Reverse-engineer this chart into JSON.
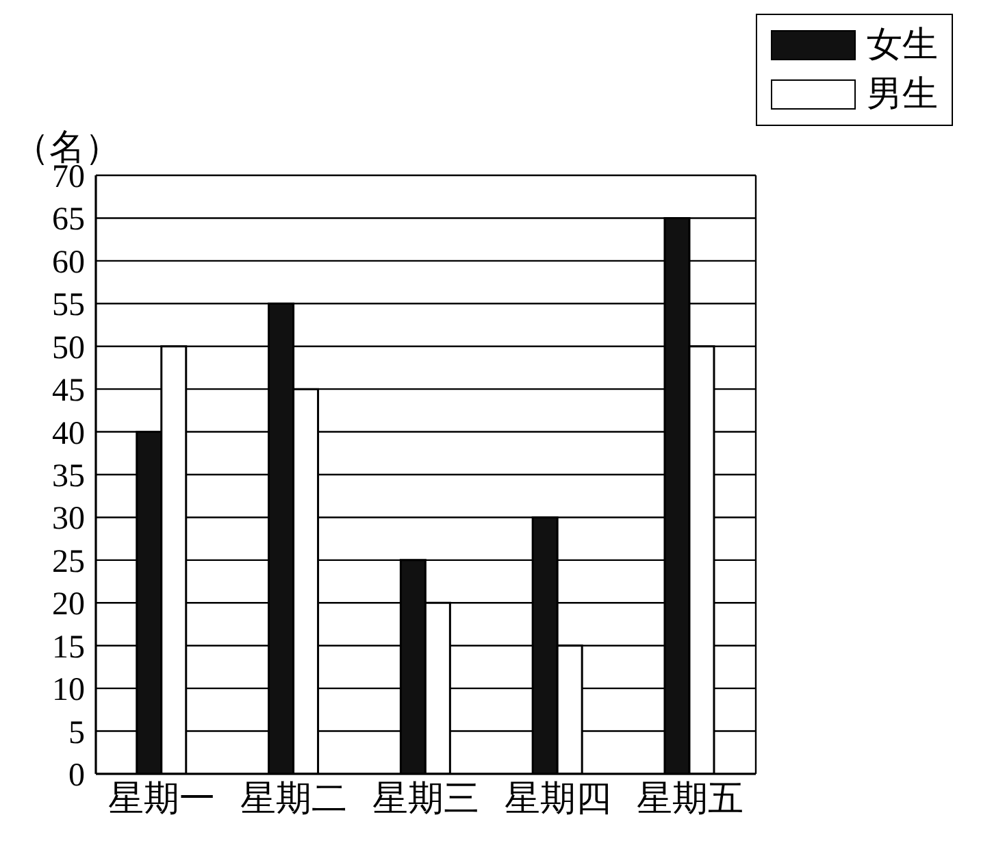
{
  "chart_data": {
    "type": "bar",
    "ylabel": "（名）",
    "categories": [
      "星期一",
      "星期二",
      "星期三",
      "星期四",
      "星期五"
    ],
    "series": [
      {
        "name": "女生",
        "color": "#111111",
        "values": [
          40,
          55,
          25,
          30,
          65
        ]
      },
      {
        "name": "男生",
        "color": "#ffffff",
        "values": [
          50,
          45,
          20,
          15,
          50
        ]
      }
    ],
    "ylim": [
      0,
      70
    ],
    "yticks": [
      0,
      5,
      10,
      15,
      20,
      25,
      30,
      35,
      40,
      45,
      50,
      55,
      60,
      65,
      70
    ],
    "grid": "y",
    "legend": "top right"
  }
}
